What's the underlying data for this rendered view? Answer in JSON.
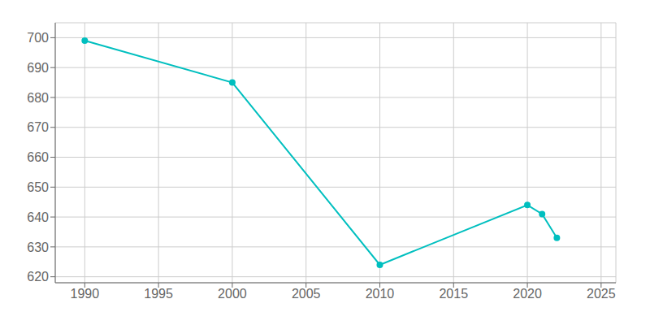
{
  "chart_data": {
    "type": "line",
    "x": [
      1990,
      2000,
      2010,
      2020,
      2021,
      2022
    ],
    "values": [
      699,
      685,
      624,
      644,
      641,
      633
    ],
    "color": "#00BFBF",
    "marker": "circle",
    "xlim": [
      1988,
      2026
    ],
    "ylim": [
      618,
      705
    ],
    "xticks": [
      1990,
      1995,
      2000,
      2005,
      2010,
      2015,
      2020,
      2025
    ],
    "yticks": [
      620,
      630,
      640,
      650,
      660,
      670,
      680,
      690,
      700
    ],
    "grid": true
  }
}
